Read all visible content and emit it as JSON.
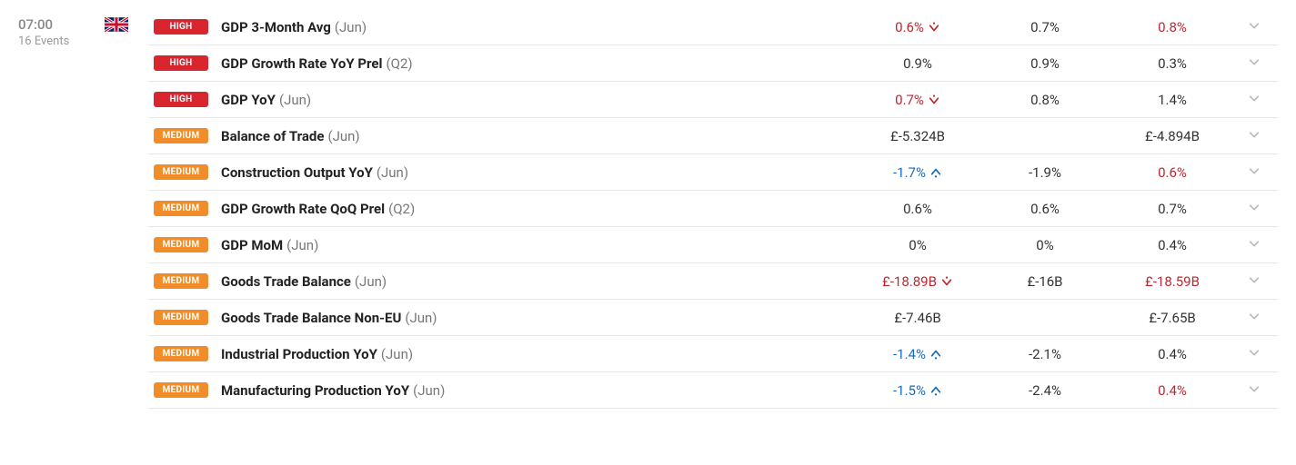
{
  "colors": {
    "high_badge": "#d9252e",
    "medium_badge": "#f28c28",
    "neg_red": "#c0262f",
    "pos_blue": "#1769c4",
    "neutral": "#333333",
    "muted": "#888888"
  },
  "left": {
    "time": "07:00",
    "events_label": "16 Events"
  },
  "flag": "uk",
  "rows": [
    {
      "badge": "HIGH",
      "badge_color": "#d9252e",
      "name": "GDP 3-Month Avg",
      "period": "(Jun)",
      "v1": "0.6%",
      "v1_color": "#c0262f",
      "v1_arrow": "down-red",
      "v2": "0.7%",
      "v2_color": "#333333",
      "v3": "0.8%",
      "v3_color": "#c0262f"
    },
    {
      "badge": "HIGH",
      "badge_color": "#d9252e",
      "name": "GDP Growth Rate YoY Prel",
      "period": "(Q2)",
      "v1": "0.9%",
      "v1_color": "#333333",
      "v2": "0.9%",
      "v2_color": "#333333",
      "v3": "0.3%",
      "v3_color": "#333333"
    },
    {
      "badge": "HIGH",
      "badge_color": "#d9252e",
      "name": "GDP YoY",
      "period": "(Jun)",
      "v1": "0.7%",
      "v1_color": "#c0262f",
      "v1_arrow": "down-red",
      "v2": "0.8%",
      "v2_color": "#333333",
      "v3": "1.4%",
      "v3_color": "#333333"
    },
    {
      "badge": "MEDIUM",
      "badge_color": "#f28c28",
      "name": "Balance of Trade",
      "period": "(Jun)",
      "v1": "£-5.324B",
      "v1_color": "#333333",
      "v2": "",
      "v2_color": "#333333",
      "v3": "£-4.894B",
      "v3_color": "#333333"
    },
    {
      "badge": "MEDIUM",
      "badge_color": "#f28c28",
      "name": "Construction Output YoY",
      "period": "(Jun)",
      "v1": "-1.7%",
      "v1_color": "#1769c4",
      "v1_arrow": "up-blue",
      "v2": "-1.9%",
      "v2_color": "#333333",
      "v3": "0.6%",
      "v3_color": "#c0262f"
    },
    {
      "badge": "MEDIUM",
      "badge_color": "#f28c28",
      "name": "GDP Growth Rate QoQ Prel",
      "period": "(Q2)",
      "v1": "0.6%",
      "v1_color": "#333333",
      "v2": "0.6%",
      "v2_color": "#333333",
      "v3": "0.7%",
      "v3_color": "#333333"
    },
    {
      "badge": "MEDIUM",
      "badge_color": "#f28c28",
      "name": "GDP MoM",
      "period": "(Jun)",
      "v1": "0%",
      "v1_color": "#333333",
      "v2": "0%",
      "v2_color": "#333333",
      "v3": "0.4%",
      "v3_color": "#333333"
    },
    {
      "badge": "MEDIUM",
      "badge_color": "#f28c28",
      "name": "Goods Trade Balance",
      "period": "(Jun)",
      "v1": "£-18.89B",
      "v1_color": "#c0262f",
      "v1_arrow": "down-red",
      "v2": "£-16B",
      "v2_color": "#333333",
      "v3": "£-18.59B",
      "v3_color": "#c0262f"
    },
    {
      "badge": "MEDIUM",
      "badge_color": "#f28c28",
      "name": "Goods Trade Balance Non-EU",
      "period": "(Jun)",
      "v1": "£-7.46B",
      "v1_color": "#333333",
      "v2": "",
      "v2_color": "#333333",
      "v3": "£-7.65B",
      "v3_color": "#333333"
    },
    {
      "badge": "MEDIUM",
      "badge_color": "#f28c28",
      "name": "Industrial Production YoY",
      "period": "(Jun)",
      "v1": "-1.4%",
      "v1_color": "#1769c4",
      "v1_arrow": "up-blue",
      "v2": "-2.1%",
      "v2_color": "#333333",
      "v3": "0.4%",
      "v3_color": "#333333"
    },
    {
      "badge": "MEDIUM",
      "badge_color": "#f28c28",
      "name": "Manufacturing Production YoY",
      "period": "(Jun)",
      "v1": "-1.5%",
      "v1_color": "#1769c4",
      "v1_arrow": "up-blue",
      "v2": "-2.4%",
      "v2_color": "#333333",
      "v3": "0.4%",
      "v3_color": "#c0262f"
    }
  ]
}
